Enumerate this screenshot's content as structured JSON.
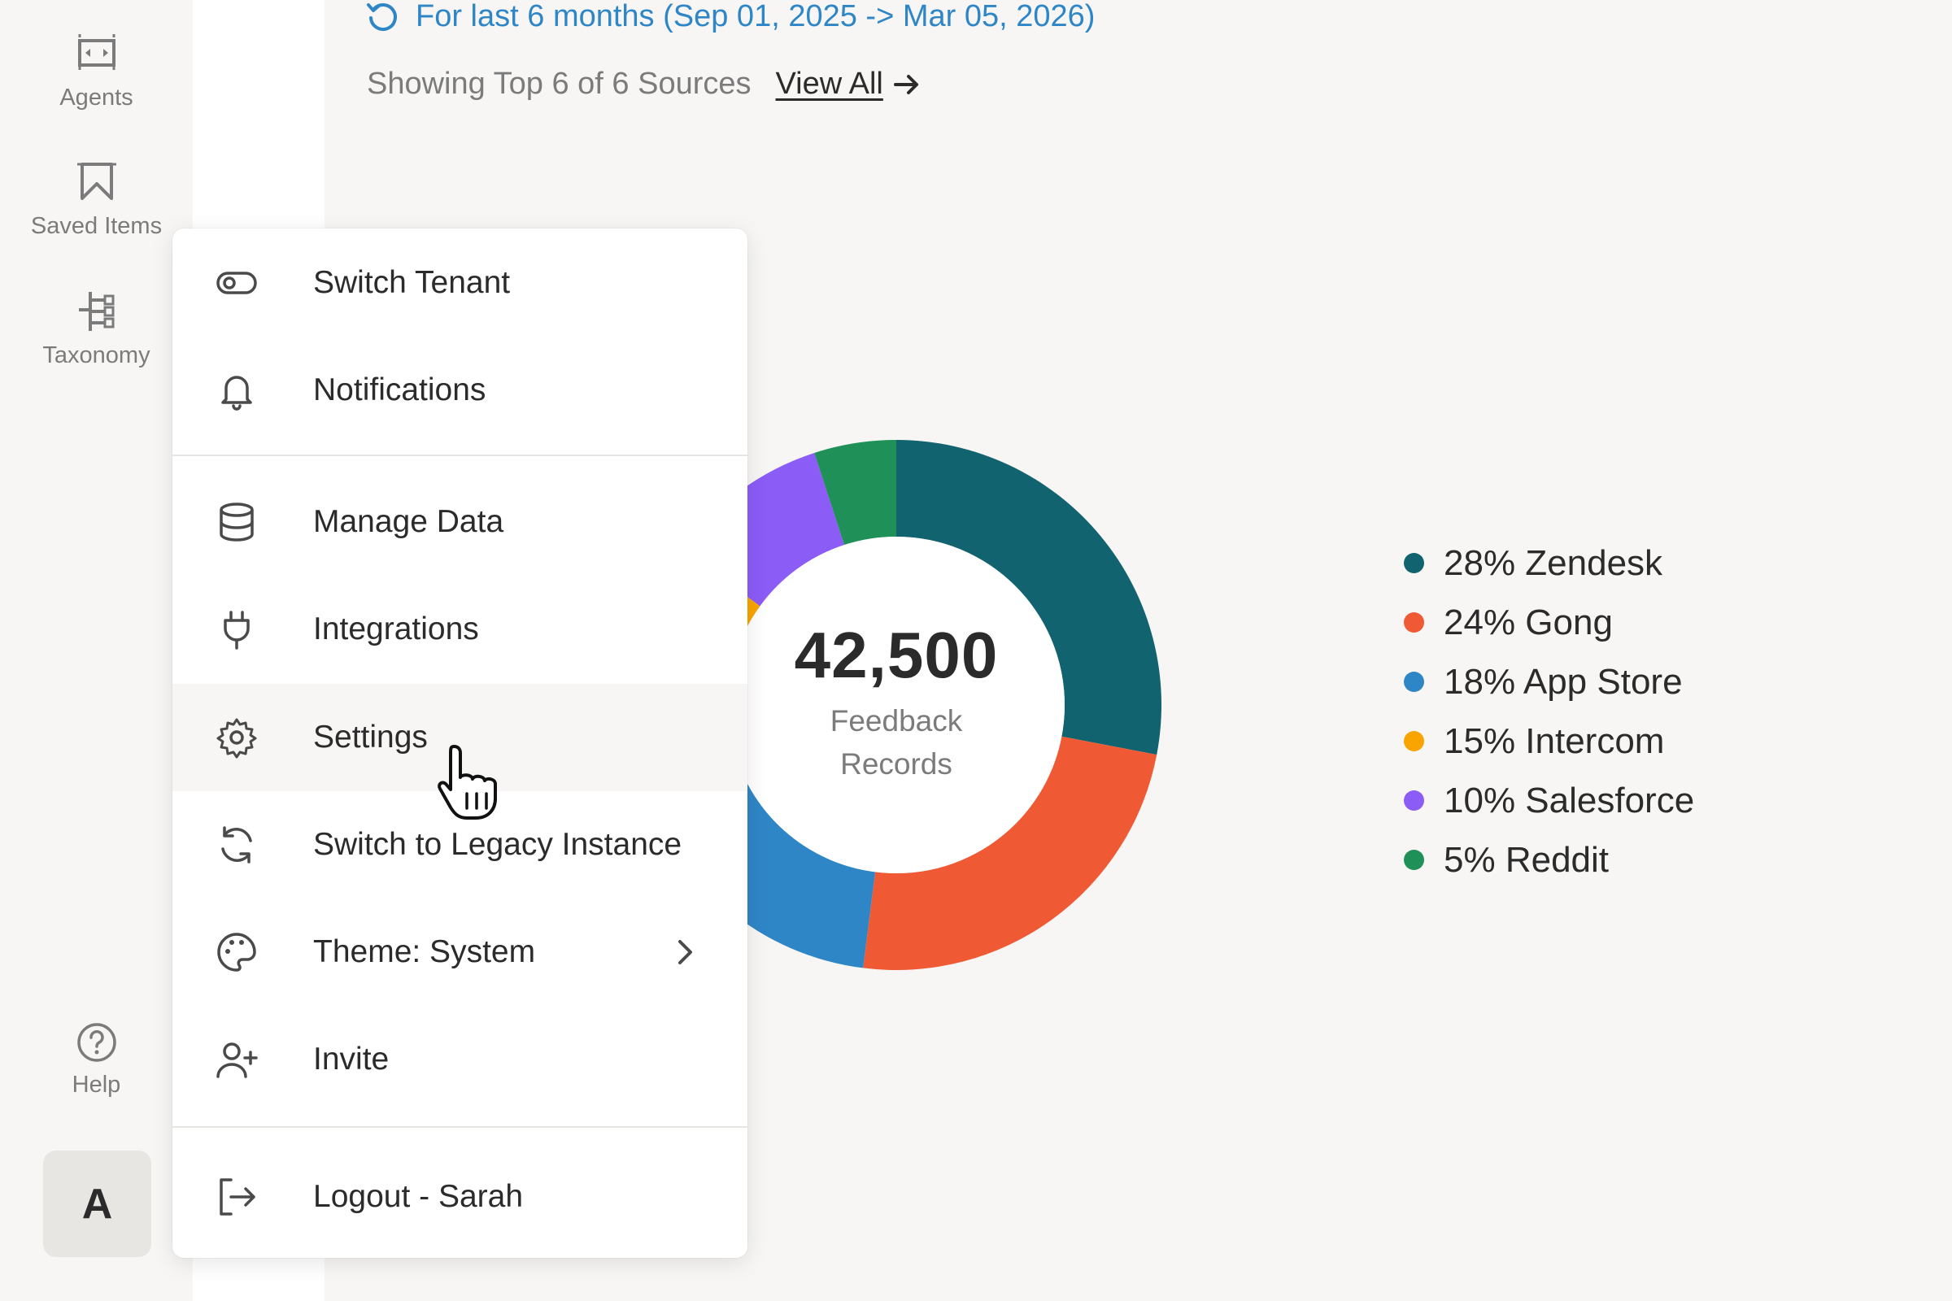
{
  "sidebar": {
    "items": [
      {
        "label": "Agents",
        "icon": "agents-icon"
      },
      {
        "label": "Saved Items",
        "icon": "bookmark-icon"
      },
      {
        "label": "Taxonomy",
        "icon": "taxonomy-icon"
      }
    ],
    "help_label": "Help",
    "avatar_initial": "A"
  },
  "header": {
    "date_range": "For last 6 months (Sep 01, 2025 -> Mar 05, 2026)",
    "showing_text": "Showing Top 6 of 6 Sources",
    "view_all": "View All"
  },
  "chart_data": {
    "type": "pie",
    "donut": true,
    "center_value": "42,500",
    "center_label_line1": "Feedback",
    "center_label_line2": "Records",
    "legend_placement": "right",
    "slices": [
      {
        "label": "28% Zendesk",
        "name": "Zendesk",
        "value": 28,
        "color": "#11636f"
      },
      {
        "label": "24% Gong",
        "name": "Gong",
        "value": 24,
        "color": "#ef5a35"
      },
      {
        "label": "18% App Store",
        "name": "App Store",
        "value": 18,
        "color": "#2f86c6"
      },
      {
        "label": "15% Intercom",
        "name": "Intercom",
        "value": 15,
        "color": "#f9a400"
      },
      {
        "label": "10% Salesforce",
        "name": "Salesforce",
        "value": 10,
        "color": "#8b5cf6"
      },
      {
        "label": "5% Reddit",
        "name": "Reddit",
        "value": 5,
        "color": "#1f9158"
      }
    ]
  },
  "menu": {
    "switch_tenant": "Switch Tenant",
    "notifications": "Notifications",
    "manage_data": "Manage Data",
    "integrations": "Integrations",
    "settings": "Settings",
    "switch_legacy": "Switch to Legacy Instance",
    "theme": "Theme: System",
    "invite": "Invite",
    "logout": "Logout - Sarah",
    "hovered_item": "Settings"
  }
}
